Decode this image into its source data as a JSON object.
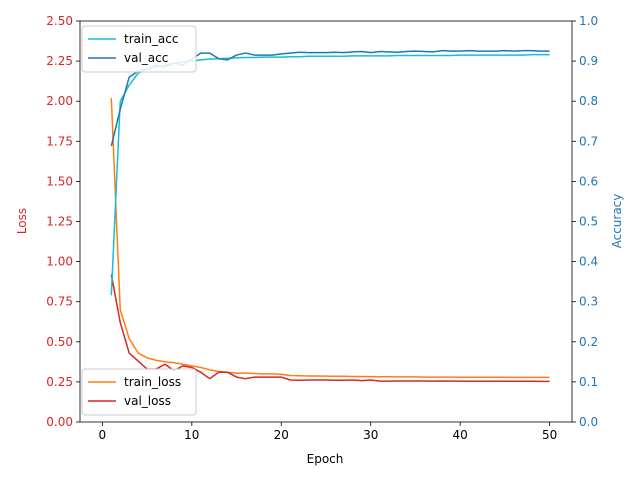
{
  "chart_data": {
    "type": "line",
    "xlabel": "Epoch",
    "ylabel_left": "Loss",
    "ylabel_right": "Accuracy",
    "left_axis_color": "#d62728",
    "right_axis_color": "#1f77b4",
    "xlim": [
      -2.5,
      52.5
    ],
    "ylim_left": [
      0.0,
      2.5
    ],
    "ylim_right": [
      0.0,
      1.0
    ],
    "x_ticks": [
      0,
      10,
      20,
      30,
      40,
      50
    ],
    "y_ticks_left": [
      "0.00",
      "0.25",
      "0.50",
      "0.75",
      "1.00",
      "1.25",
      "1.50",
      "1.75",
      "2.00",
      "2.25",
      "2.50"
    ],
    "y_ticks_right": [
      "0.0",
      "0.1",
      "0.2",
      "0.3",
      "0.4",
      "0.5",
      "0.6",
      "0.7",
      "0.8",
      "0.9",
      "1.0"
    ],
    "grid": false,
    "legend_right_axis": "upper-left",
    "legend_left_axis": "lower-left",
    "x": [
      1,
      2,
      3,
      4,
      5,
      6,
      7,
      8,
      9,
      10,
      11,
      12,
      13,
      14,
      15,
      16,
      17,
      18,
      19,
      20,
      21,
      22,
      23,
      24,
      25,
      26,
      27,
      28,
      29,
      30,
      31,
      32,
      33,
      34,
      35,
      36,
      37,
      38,
      39,
      40,
      41,
      42,
      43,
      44,
      45,
      46,
      47,
      48,
      49,
      50
    ],
    "series_right": [
      {
        "name": "train_acc",
        "color": "#17becf",
        "values": [
          0.316,
          0.8,
          0.84,
          0.87,
          0.88,
          0.885,
          0.89,
          0.895,
          0.898,
          0.9,
          0.903,
          0.905,
          0.906,
          0.907,
          0.908,
          0.909,
          0.909,
          0.91,
          0.91,
          0.91,
          0.911,
          0.911,
          0.912,
          0.912,
          0.912,
          0.912,
          0.912,
          0.913,
          0.913,
          0.913,
          0.913,
          0.913,
          0.914,
          0.914,
          0.914,
          0.914,
          0.914,
          0.914,
          0.914,
          0.915,
          0.915,
          0.915,
          0.915,
          0.915,
          0.915,
          0.915,
          0.915,
          0.916,
          0.916,
          0.916
        ]
      },
      {
        "name": "val_acc",
        "color": "#1f77b4",
        "values": [
          0.688,
          0.78,
          0.86,
          0.875,
          0.88,
          0.89,
          0.885,
          0.895,
          0.89,
          0.905,
          0.92,
          0.92,
          0.906,
          0.903,
          0.915,
          0.92,
          0.915,
          0.915,
          0.915,
          0.918,
          0.92,
          0.922,
          0.921,
          0.921,
          0.921,
          0.922,
          0.921,
          0.923,
          0.924,
          0.921,
          0.924,
          0.923,
          0.922,
          0.924,
          0.925,
          0.924,
          0.923,
          0.926,
          0.925,
          0.925,
          0.926,
          0.925,
          0.925,
          0.925,
          0.926,
          0.925,
          0.926,
          0.926,
          0.925,
          0.925
        ]
      }
    ],
    "series_left": [
      {
        "name": "train_loss",
        "color": "#ff7f0e",
        "values": [
          2.02,
          0.7,
          0.52,
          0.43,
          0.4,
          0.385,
          0.375,
          0.37,
          0.36,
          0.35,
          0.34,
          0.325,
          0.315,
          0.31,
          0.305,
          0.305,
          0.302,
          0.3,
          0.3,
          0.298,
          0.29,
          0.288,
          0.287,
          0.287,
          0.286,
          0.285,
          0.285,
          0.284,
          0.284,
          0.283,
          0.282,
          0.282,
          0.281,
          0.281,
          0.281,
          0.28,
          0.28,
          0.28,
          0.28,
          0.279,
          0.279,
          0.279,
          0.279,
          0.279,
          0.279,
          0.278,
          0.278,
          0.278,
          0.278,
          0.278
        ]
      },
      {
        "name": "val_loss",
        "color": "#d62728",
        "values": [
          0.92,
          0.62,
          0.43,
          0.38,
          0.33,
          0.33,
          0.36,
          0.32,
          0.35,
          0.34,
          0.31,
          0.27,
          0.31,
          0.31,
          0.28,
          0.27,
          0.28,
          0.28,
          0.28,
          0.28,
          0.262,
          0.26,
          0.262,
          0.262,
          0.262,
          0.26,
          0.26,
          0.262,
          0.258,
          0.262,
          0.255,
          0.255,
          0.256,
          0.256,
          0.256,
          0.256,
          0.255,
          0.256,
          0.255,
          0.255,
          0.254,
          0.254,
          0.254,
          0.254,
          0.254,
          0.254,
          0.254,
          0.254,
          0.253,
          0.253
        ]
      }
    ]
  }
}
